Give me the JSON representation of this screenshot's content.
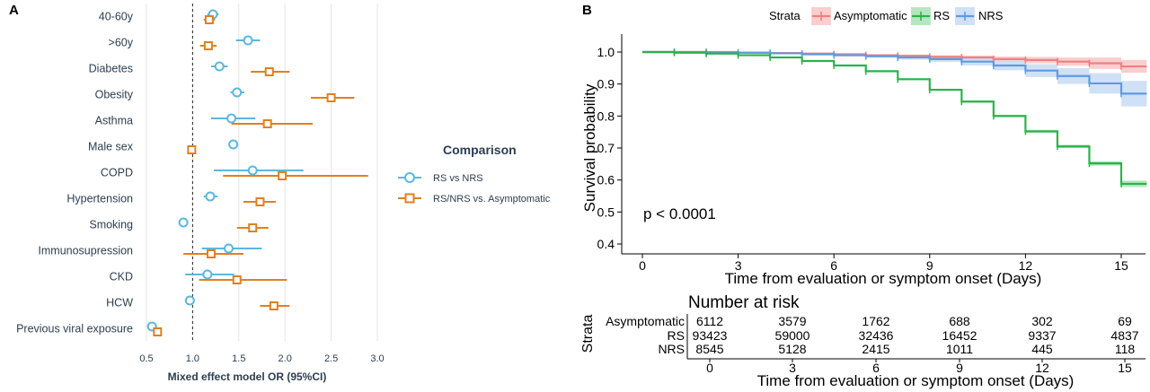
{
  "panel_a_letter": "A",
  "panel_b_letter": "B",
  "colors": {
    "rs_vs_nrs": "#5bb7dd",
    "rsnrs_vs_asym": "#e0801e",
    "asymptomatic": "#f08080",
    "rs": "#2ab34a",
    "nrs": "#5f9ae0",
    "asymptomatic_band": "#f8c6c6",
    "rs_band": "#a9e2b5",
    "nrs_band": "#c8dcf5"
  },
  "chart_data": [
    {
      "type": "forest",
      "xlabel": "Mixed effect model OR (95%CI)",
      "xlim": [
        0.5,
        3.0
      ],
      "xticks": [
        0.5,
        1.0,
        1.5,
        2.0,
        2.5,
        3.0
      ],
      "xtick_labels": [
        "0.5",
        "1.0",
        "1.5",
        "2.0",
        "2.5",
        "3.0"
      ],
      "reference_line": 1.0,
      "legend_title": "Comparison",
      "categories": [
        "40-60y",
        ">60y",
        "Diabetes",
        "Obesity",
        "Asthma",
        "Male sex",
        "COPD",
        "Hypertension",
        "Smoking",
        "Immunosupression",
        "CKD",
        "HCW",
        "Previous viral exposure"
      ],
      "series": [
        {
          "name": "RS vs NRS",
          "marker": "circle",
          "or": [
            1.22,
            1.6,
            1.29,
            1.48,
            1.42,
            1.44,
            1.65,
            1.19,
            0.9,
            1.39,
            1.16,
            0.97,
            0.56
          ],
          "lower": [
            1.16,
            1.47,
            1.2,
            1.41,
            1.2,
            1.39,
            1.23,
            1.12,
            0.86,
            1.1,
            0.92,
            0.93,
            0.52
          ],
          "upper": [
            1.28,
            1.73,
            1.38,
            1.56,
            1.68,
            1.49,
            2.2,
            1.27,
            0.94,
            1.75,
            1.45,
            1.01,
            0.6
          ]
        },
        {
          "name": "RS/NRS vs. Asymptomatic",
          "marker": "square",
          "or": [
            1.18,
            1.17,
            1.83,
            2.5,
            1.81,
            0.99,
            1.97,
            1.73,
            1.65,
            1.2,
            1.48,
            1.88,
            0.62
          ],
          "lower": [
            1.12,
            1.08,
            1.63,
            2.28,
            1.42,
            0.96,
            1.33,
            1.55,
            1.48,
            0.9,
            1.07,
            1.73,
            0.6
          ],
          "upper": [
            1.24,
            1.26,
            2.05,
            2.75,
            2.3,
            1.03,
            2.9,
            1.9,
            1.82,
            1.55,
            2.02,
            2.05,
            0.65
          ]
        }
      ]
    },
    {
      "type": "survival",
      "legend_title": "Strata",
      "ylabel": "Survival probability",
      "xlabel": "Time from evaluation or symptom onset (Days)",
      "xlim": [
        0,
        15
      ],
      "ylim": [
        0.4,
        1.0
      ],
      "xticks": [
        0,
        3,
        6,
        9,
        12,
        15
      ],
      "yticks": [
        0.4,
        0.5,
        0.6,
        0.7,
        0.8,
        0.9,
        1.0
      ],
      "ytick_labels": [
        "0.4",
        "0.5",
        "0.6",
        "0.7",
        "0.8",
        "0.9",
        "1.0"
      ],
      "annotation": "p < 0.0001",
      "series": [
        {
          "name": "Asymptomatic",
          "x": [
            0,
            1,
            2,
            3,
            4,
            5,
            6,
            7,
            8,
            9,
            10,
            11,
            12,
            13,
            14,
            15
          ],
          "y": [
            1.0,
            1.0,
            1.0,
            0.998,
            0.997,
            0.995,
            0.993,
            0.99,
            0.988,
            0.985,
            0.983,
            0.978,
            0.975,
            0.97,
            0.965,
            0.955
          ],
          "lower": [
            1.0,
            1.0,
            0.999,
            0.997,
            0.995,
            0.993,
            0.99,
            0.987,
            0.984,
            0.98,
            0.977,
            0.97,
            0.965,
            0.957,
            0.947,
            0.935
          ],
          "upper": [
            1.0,
            1.0,
            1.0,
            0.999,
            0.999,
            0.997,
            0.996,
            0.993,
            0.992,
            0.99,
            0.989,
            0.986,
            0.985,
            0.983,
            0.983,
            0.975
          ]
        },
        {
          "name": "RS",
          "x": [
            0,
            1,
            2,
            3,
            4,
            5,
            6,
            7,
            8,
            9,
            10,
            11,
            12,
            13,
            14,
            15
          ],
          "y": [
            1.0,
            0.998,
            0.995,
            0.99,
            0.983,
            0.972,
            0.958,
            0.94,
            0.915,
            0.882,
            0.845,
            0.8,
            0.752,
            0.705,
            0.652,
            0.588
          ],
          "lower": [
            1.0,
            0.997,
            0.994,
            0.989,
            0.982,
            0.971,
            0.956,
            0.938,
            0.912,
            0.879,
            0.842,
            0.796,
            0.747,
            0.7,
            0.645,
            0.578
          ],
          "upper": [
            1.0,
            0.999,
            0.996,
            0.991,
            0.984,
            0.973,
            0.96,
            0.942,
            0.918,
            0.885,
            0.848,
            0.804,
            0.757,
            0.71,
            0.659,
            0.598
          ]
        },
        {
          "name": "NRS",
          "x": [
            0,
            1,
            2,
            3,
            4,
            5,
            6,
            7,
            8,
            9,
            10,
            11,
            12,
            13,
            14,
            15
          ],
          "y": [
            1.0,
            1.0,
            0.999,
            0.998,
            0.996,
            0.993,
            0.99,
            0.987,
            0.983,
            0.978,
            0.97,
            0.958,
            0.942,
            0.925,
            0.902,
            0.87
          ],
          "lower": [
            1.0,
            0.999,
            0.998,
            0.996,
            0.994,
            0.99,
            0.986,
            0.982,
            0.976,
            0.969,
            0.958,
            0.943,
            0.922,
            0.9,
            0.87,
            0.83
          ],
          "upper": [
            1.0,
            1.0,
            1.0,
            0.999,
            0.998,
            0.996,
            0.994,
            0.992,
            0.99,
            0.987,
            0.982,
            0.973,
            0.962,
            0.95,
            0.934,
            0.91
          ]
        }
      ]
    },
    {
      "type": "table",
      "title": "Number at risk",
      "ylabel": "Strata",
      "xlabel": "Time from evaluation or symptom onset (Days)",
      "columns": [
        0,
        3,
        6,
        9,
        12,
        15
      ],
      "rows": [
        {
          "name": "Asymptomatic",
          "values": [
            "6112",
            "3579",
            "1762",
            "688",
            "302",
            "69"
          ]
        },
        {
          "name": "RS",
          "values": [
            "93423",
            "59000",
            "32436",
            "16452",
            "9337",
            "4837"
          ]
        },
        {
          "name": "NRS",
          "values": [
            "8545",
            "5128",
            "2415",
            "1011",
            "445",
            "118"
          ]
        }
      ]
    }
  ]
}
